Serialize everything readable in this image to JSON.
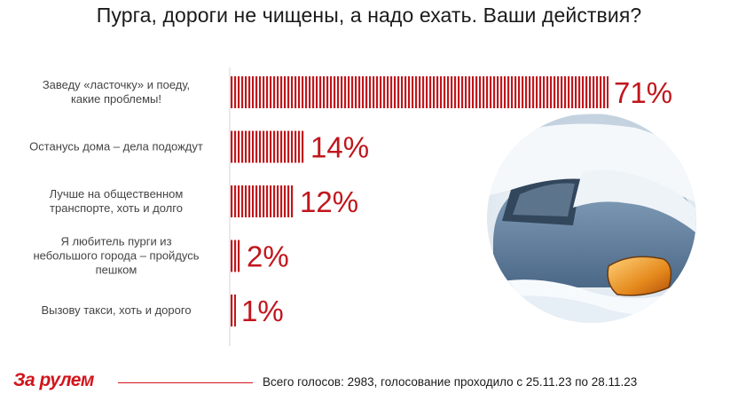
{
  "title": "Пурга, дороги не чищены, а надо ехать. Ваши действия?",
  "chart_data": {
    "type": "bar",
    "orientation": "horizontal",
    "title": "Пурга, дороги не чищены, а надо ехать. Ваши действия?",
    "categories": [
      [
        "Заведу «ласточку» и поеду,",
        "какие проблемы!"
      ],
      [
        "Останусь дома – дела подождут"
      ],
      [
        "Лучше на общественном",
        "транспорте, хоть и долго"
      ],
      [
        "Я любитель пурги из",
        "небольшого города – пройдусь",
        "пешком"
      ],
      [
        "Вызову такси, хоть и дорого"
      ]
    ],
    "values": [
      71,
      14,
      12,
      2,
      1
    ],
    "value_labels": [
      "71%",
      "14%",
      "12%",
      "2%",
      "1%"
    ],
    "unit": "%",
    "xlim": [
      0,
      100
    ],
    "bar_color": "#c0161c",
    "bar_pattern": "vertical-stripes",
    "grid": false,
    "legend": "none"
  },
  "brand": {
    "logo_text": "За рулем",
    "accent_color": "#d2141b"
  },
  "footer": {
    "text": "Всего голосов: 2983, голосование проходило с 25.11.23 по 28.11.23"
  }
}
